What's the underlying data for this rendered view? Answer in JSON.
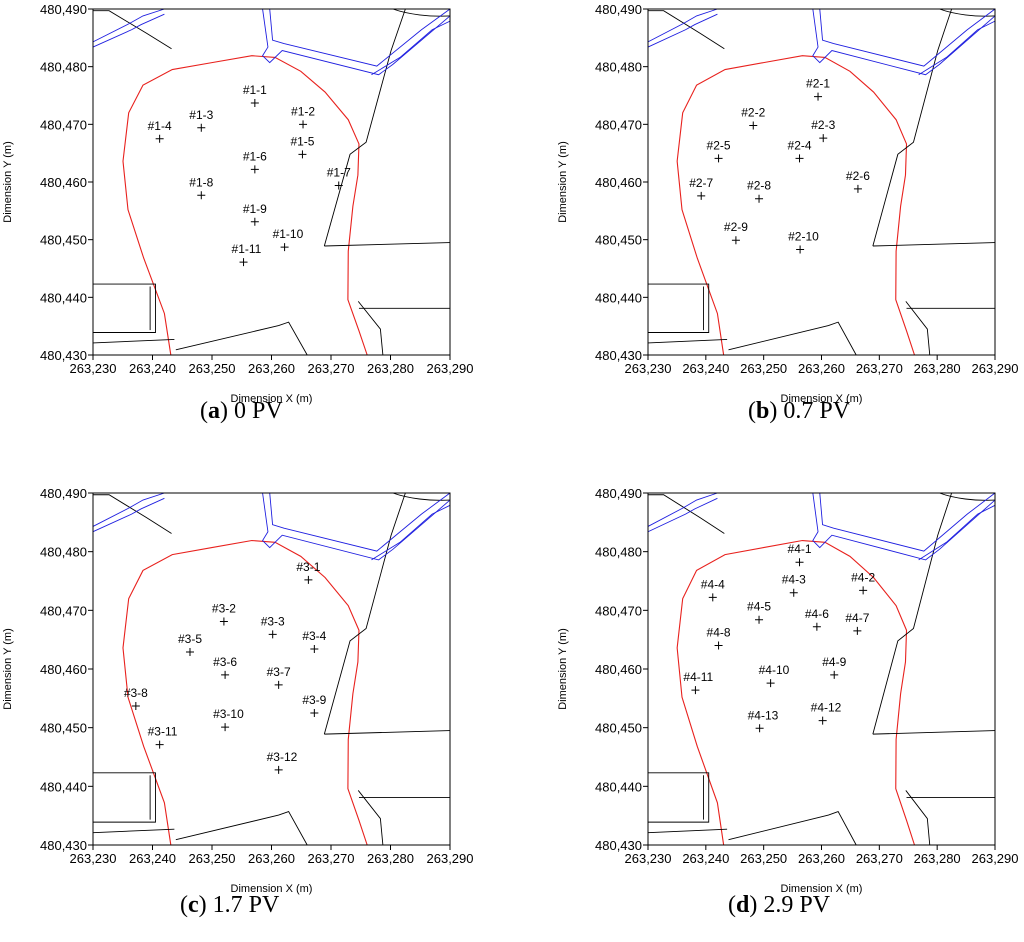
{
  "chart_data": [
    {
      "type": "scatter",
      "caption_letter": "a",
      "caption_text": "0 PV",
      "xlabel": "Dimension X (m)",
      "ylabel": "Dimension Y (m)",
      "xlim": [
        263230,
        263290
      ],
      "ylim": [
        480430,
        480490
      ],
      "xticks": [
        "263,230",
        "263,240",
        "263,250",
        "263,260",
        "263,270",
        "263,280",
        "263,290"
      ],
      "yticks": [
        "480,430",
        "480,440",
        "480,450",
        "480,460",
        "480,470",
        "480,480",
        "480,490"
      ],
      "points": [
        {
          "label": "#1-1",
          "x": 263257.2,
          "y": 480473.7
        },
        {
          "label": "#1-2",
          "x": 263265.3,
          "y": 480470.0
        },
        {
          "label": "#1-3",
          "x": 263248.2,
          "y": 480469.4
        },
        {
          "label": "#1-4",
          "x": 263241.2,
          "y": 480467.5
        },
        {
          "label": "#1-5",
          "x": 263265.2,
          "y": 480464.8
        },
        {
          "label": "#1-6",
          "x": 263257.2,
          "y": 480462.2
        },
        {
          "label": "#1-7",
          "x": 263271.3,
          "y": 480459.4
        },
        {
          "label": "#1-8",
          "x": 263248.2,
          "y": 480457.7
        },
        {
          "label": "#1-9",
          "x": 263257.2,
          "y": 480453.1
        },
        {
          "label": "#1-10",
          "x": 263262.2,
          "y": 480448.7
        },
        {
          "label": "#1-11",
          "x": 263255.3,
          "y": 480446.1
        }
      ]
    },
    {
      "type": "scatter",
      "caption_letter": "b",
      "caption_text": "0.7 PV",
      "xlabel": "Dimension X (m)",
      "ylabel": "Dimension Y (m)",
      "xlim": [
        263230,
        263290
      ],
      "ylim": [
        480430,
        480490
      ],
      "xticks": [
        "263,230",
        "263,240",
        "263,250",
        "263,260",
        "263,270",
        "263,280",
        "263,290"
      ],
      "yticks": [
        "480,430",
        "480,440",
        "480,450",
        "480,460",
        "480,470",
        "480,480",
        "480,490"
      ],
      "points": [
        {
          "label": "#2-1",
          "x": 263259.4,
          "y": 480474.8
        },
        {
          "label": "#2-2",
          "x": 263248.2,
          "y": 480469.8
        },
        {
          "label": "#2-3",
          "x": 263260.3,
          "y": 480467.6
        },
        {
          "label": "#2-4",
          "x": 263256.2,
          "y": 480464.1
        },
        {
          "label": "#2-5",
          "x": 263242.2,
          "y": 480464.1
        },
        {
          "label": "#2-6",
          "x": 263266.3,
          "y": 480458.8
        },
        {
          "label": "#2-7",
          "x": 263239.2,
          "y": 480457.6
        },
        {
          "label": "#2-8",
          "x": 263249.2,
          "y": 480457.1
        },
        {
          "label": "#2-9",
          "x": 263245.2,
          "y": 480449.9
        },
        {
          "label": "#2-10",
          "x": 263256.3,
          "y": 480448.3
        }
      ]
    },
    {
      "type": "scatter",
      "caption_letter": "c",
      "caption_text": "1.7 PV",
      "xlabel": "Dimension X (m)",
      "ylabel": "Dimension Y (m)",
      "xlim": [
        263230,
        263290
      ],
      "ylim": [
        480430,
        480490
      ],
      "xticks": [
        "263,230",
        "263,240",
        "263,250",
        "263,260",
        "263,270",
        "263,280",
        "263,290"
      ],
      "yticks": [
        "480,430",
        "480,440",
        "480,450",
        "480,460",
        "480,470",
        "480,480",
        "480,490"
      ],
      "points": [
        {
          "label": "#3-1",
          "x": 263266.2,
          "y": 480475.2
        },
        {
          "label": "#3-2",
          "x": 263252.0,
          "y": 480468.1
        },
        {
          "label": "#3-3",
          "x": 263260.2,
          "y": 480465.9
        },
        {
          "label": "#3-4",
          "x": 263267.2,
          "y": 480463.4
        },
        {
          "label": "#3-5",
          "x": 263246.3,
          "y": 480462.9
        },
        {
          "label": "#3-6",
          "x": 263252.2,
          "y": 480459.0
        },
        {
          "label": "#3-7",
          "x": 263261.2,
          "y": 480457.3
        },
        {
          "label": "#3-8",
          "x": 263237.2,
          "y": 480453.7
        },
        {
          "label": "#3-9",
          "x": 263267.2,
          "y": 480452.5
        },
        {
          "label": "#3-10",
          "x": 263252.2,
          "y": 480450.1
        },
        {
          "label": "#3-11",
          "x": 263241.2,
          "y": 480447.1
        },
        {
          "label": "#3-12",
          "x": 263261.2,
          "y": 480442.8
        }
      ]
    },
    {
      "type": "scatter",
      "caption_letter": "d",
      "caption_text": "2.9 PV",
      "xlabel": "Dimension X (m)",
      "ylabel": "Dimension Y (m)",
      "xlim": [
        263230,
        263290
      ],
      "ylim": [
        480430,
        480490
      ],
      "xticks": [
        "263,230",
        "263,240",
        "263,250",
        "263,260",
        "263,270",
        "263,280",
        "263,290"
      ],
      "yticks": [
        "480,430",
        "480,440",
        "480,450",
        "480,460",
        "480,470",
        "480,480",
        "480,490"
      ],
      "points": [
        {
          "label": "#4-1",
          "x": 263256.2,
          "y": 480478.2
        },
        {
          "label": "#4-2",
          "x": 263267.2,
          "y": 480473.4
        },
        {
          "label": "#4-3",
          "x": 263255.2,
          "y": 480473.0
        },
        {
          "label": "#4-4",
          "x": 263241.2,
          "y": 480472.2
        },
        {
          "label": "#4-5",
          "x": 263249.2,
          "y": 480468.4
        },
        {
          "label": "#4-6",
          "x": 263259.2,
          "y": 480467.2
        },
        {
          "label": "#4-7",
          "x": 263266.2,
          "y": 480466.5
        },
        {
          "label": "#4-8",
          "x": 263242.2,
          "y": 480464.0
        },
        {
          "label": "#4-9",
          "x": 263262.2,
          "y": 480459.0
        },
        {
          "label": "#4-10",
          "x": 263251.2,
          "y": 480457.6
        },
        {
          "label": "#4-11",
          "x": 263238.2,
          "y": 480456.4
        },
        {
          "label": "#4-12",
          "x": 263260.2,
          "y": 480451.2
        },
        {
          "label": "#4-13",
          "x": 263249.3,
          "y": 480449.9
        }
      ]
    }
  ],
  "map_colors": {
    "boundary": "#e8211d",
    "roads": "#000000",
    "canal": "#2020e0",
    "axes": "#000000"
  }
}
